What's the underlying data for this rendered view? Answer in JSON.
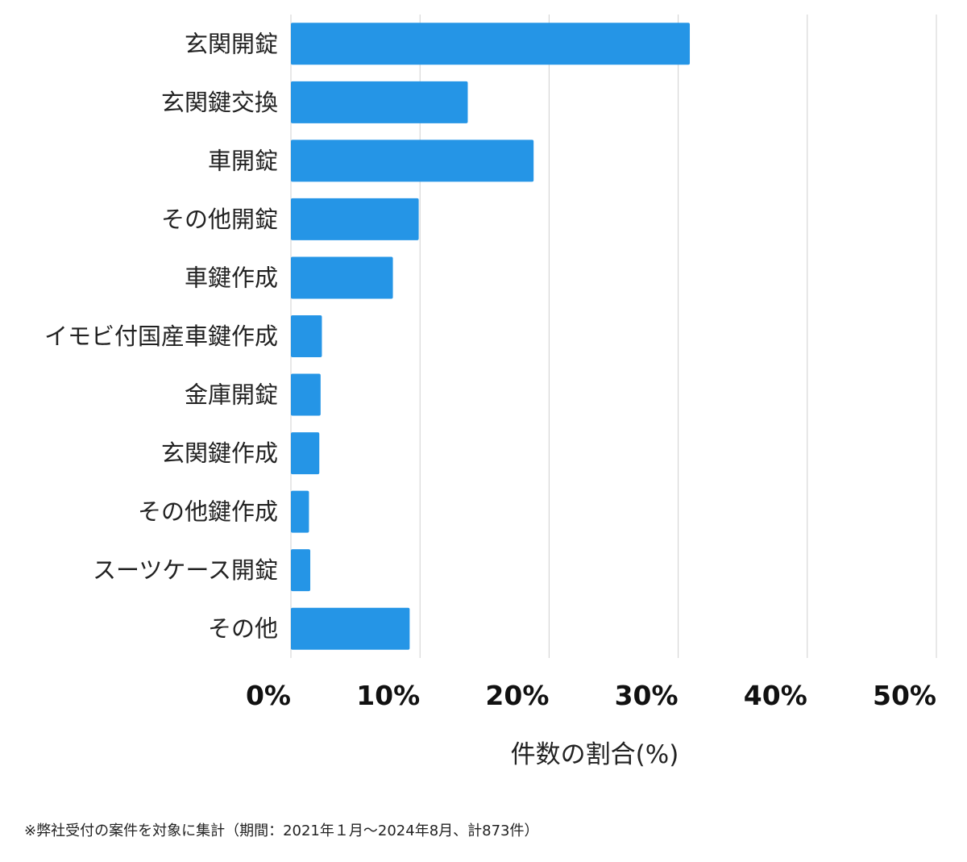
{
  "chart_data": {
    "type": "bar",
    "orientation": "horizontal",
    "categories": [
      "玄関開錠",
      "玄関鍵交換",
      "車開錠",
      "その他開錠",
      "車鍵作成",
      "イモビ付国産車鍵作成",
      "金庫開錠",
      "玄関鍵作成",
      "その他鍵作成",
      "スーツケース開錠",
      "その他"
    ],
    "values": [
      30.9,
      13.7,
      18.8,
      9.9,
      7.9,
      2.4,
      2.3,
      2.2,
      1.4,
      1.5,
      9.2
    ],
    "xlim": [
      0,
      50
    ],
    "xticks": [
      0,
      10,
      20,
      30,
      40,
      50
    ],
    "xtick_labels": [
      "0%",
      "10%",
      "20%",
      "30%",
      "40%",
      "50%"
    ],
    "xlabel": "件数の割合(%)",
    "grid": "vertical",
    "bar_color": "#2595e6",
    "grid_color": "#d0d0d0"
  },
  "footnote": "※弊社受付の案件を対象に集計（期間：2021年１月〜2024年8月、計873件）"
}
